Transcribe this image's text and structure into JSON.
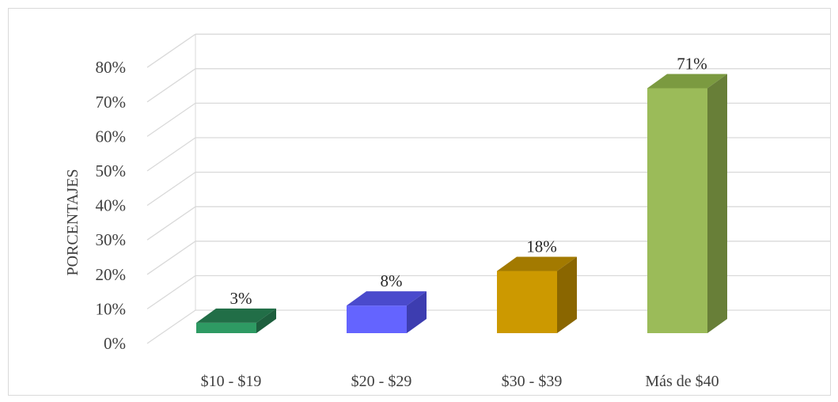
{
  "chart_data": {
    "type": "bar",
    "style": "3d-column",
    "categories": [
      "$10 - $19",
      "$20 - $29",
      "$30 - $39",
      "Más de $40"
    ],
    "values": [
      3,
      8,
      18,
      71
    ],
    "data_labels": [
      "3%",
      "8%",
      "18%",
      "71%"
    ],
    "ylabel": "PORCENTAJES",
    "xlabel": "",
    "title": "",
    "ylim": [
      0,
      80
    ],
    "ytick_values": [
      0,
      10,
      20,
      30,
      40,
      50,
      60,
      70,
      80
    ],
    "ytick_labels": [
      "0%",
      "10%",
      "20%",
      "30%",
      "40%",
      "50%",
      "60%",
      "70%",
      "80%"
    ],
    "grid": true,
    "legend": "none",
    "colors": [
      {
        "front": "#2e9a63",
        "top": "#216e47",
        "side": "#1d5e3d"
      },
      {
        "front": "#6464ff",
        "top": "#4a4acc",
        "side": "#3d3db0"
      },
      {
        "front": "#cc9900",
        "top": "#a37a00",
        "side": "#8a6600"
      },
      {
        "front": "#9bbb59",
        "top": "#7b9a40",
        "side": "#687f38"
      }
    ],
    "grid_color": "#d9d9d9"
  }
}
